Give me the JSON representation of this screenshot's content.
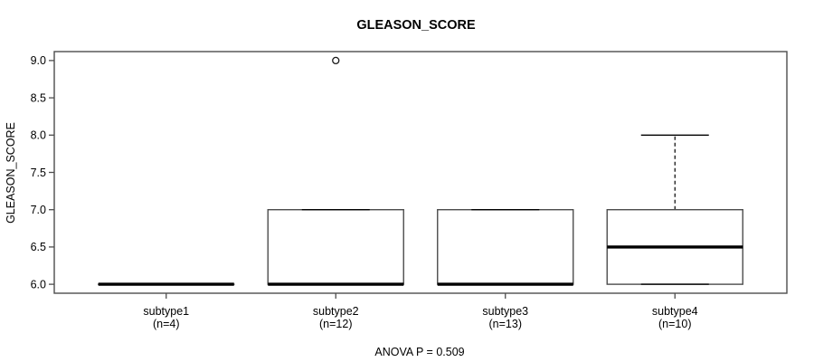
{
  "chart_data": {
    "type": "boxplot",
    "title": "GLEASON_SCORE",
    "ylabel": "GLEASON_SCORE",
    "xlabel": "",
    "footer": "ANOVA P = 0.509",
    "anova_p": 0.509,
    "ylim": [
      5.88,
      9.12
    ],
    "yticks": [
      "6.0",
      "6.5",
      "7.0",
      "7.5",
      "8.0",
      "8.5",
      "9.0"
    ],
    "ytick_values": [
      6.0,
      6.5,
      7.0,
      7.5,
      8.0,
      8.5,
      9.0
    ],
    "grid": false,
    "legend": null,
    "groups": [
      {
        "label": "subtype1",
        "sublabel": "(n=4)",
        "n": 4,
        "whisker_low": 6,
        "q1": 6,
        "median": 6,
        "q3": 6,
        "whisker_high": 6,
        "outliers": []
      },
      {
        "label": "subtype2",
        "sublabel": "(n=12)",
        "n": 12,
        "whisker_low": 6,
        "q1": 6,
        "median": 6,
        "q3": 7,
        "whisker_high": 7,
        "outliers": [
          9
        ]
      },
      {
        "label": "subtype3",
        "sublabel": "(n=13)",
        "n": 13,
        "whisker_low": 6,
        "q1": 6,
        "median": 6,
        "q3": 7,
        "whisker_high": 7,
        "outliers": []
      },
      {
        "label": "subtype4",
        "sublabel": "(n=10)",
        "n": 10,
        "whisker_low": 6,
        "q1": 6,
        "median": 6.5,
        "q3": 7,
        "whisker_high": 8,
        "outliers": []
      }
    ],
    "colors": {
      "background": "#ffffff",
      "frame": "#4d4d4d",
      "box_stroke": "#4d4d4d",
      "median": "#000000",
      "whisker": "#000000",
      "outlier": "#1a1a1a",
      "text": "#000000"
    }
  }
}
